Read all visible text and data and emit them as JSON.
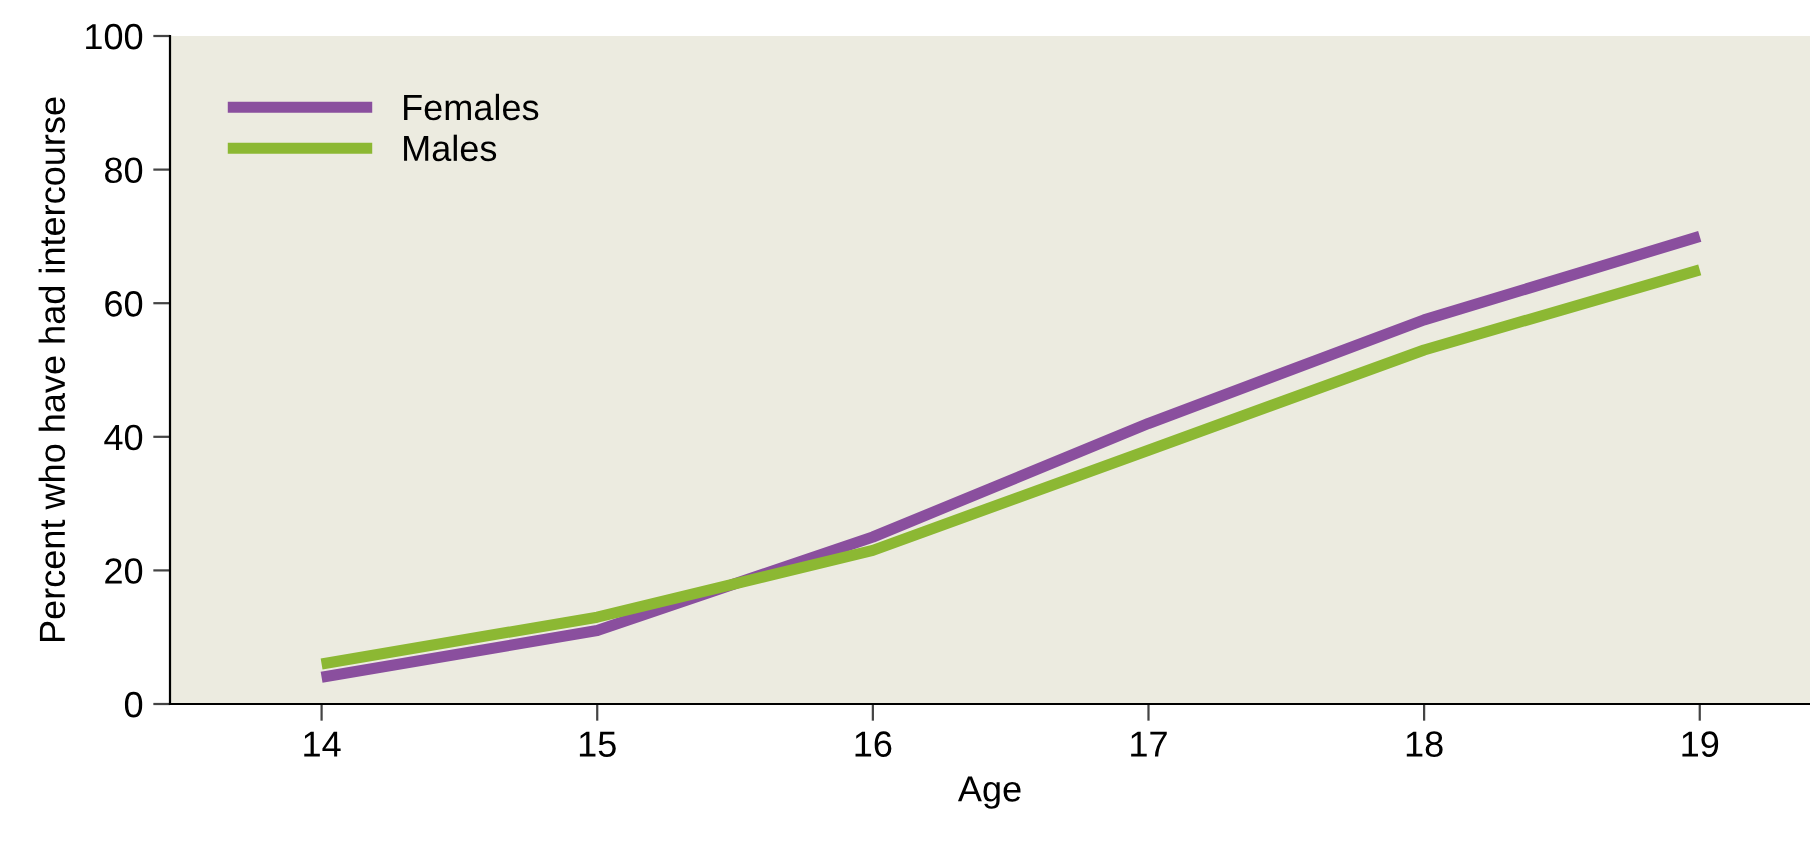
{
  "chart_data": {
    "type": "line",
    "xlabel": "Age",
    "ylabel": "Percent who have had intercourse",
    "x": [
      14,
      15,
      16,
      17,
      18,
      19
    ],
    "series": [
      {
        "name": "Females",
        "color": "#8a4f9e",
        "values": [
          4,
          11,
          25,
          42,
          57.5,
          70
        ]
      },
      {
        "name": "Males",
        "color": "#8cb833",
        "values": [
          6,
          13,
          23,
          38,
          53,
          65
        ]
      }
    ],
    "xlim": [
      13.45,
      19.4
    ],
    "xticks": [
      14,
      15,
      16,
      17,
      18,
      19
    ],
    "ylim": [
      0,
      100
    ],
    "yticks": [
      0,
      20,
      40,
      60,
      80,
      100
    ],
    "grid": false,
    "legend": "top left",
    "marker": "none",
    "line_style": "solid"
  }
}
